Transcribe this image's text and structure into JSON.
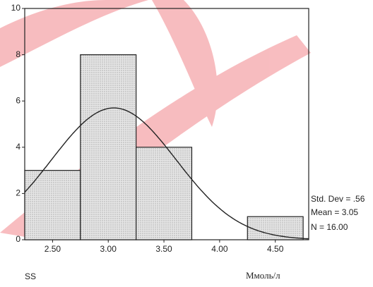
{
  "chart_data": {
    "type": "histogram",
    "bins": [
      2.25,
      2.75,
      3.25,
      3.75,
      4.25,
      4.75
    ],
    "values": [
      3,
      8,
      4,
      0,
      1
    ],
    "color": "#d4d4d4",
    "xlim": [
      2.25,
      4.8
    ],
    "ylim": [
      0,
      10
    ],
    "xticks": [
      {
        "value": 2.5,
        "label": "2.50"
      },
      {
        "value": 3,
        "label": "3.00"
      },
      {
        "value": 3.5,
        "label": "3.50"
      },
      {
        "value": 4,
        "label": "4.00"
      },
      {
        "value": 4.5,
        "label": "4.50"
      }
    ],
    "yticks": [
      0,
      2,
      4,
      6,
      8,
      10
    ],
    "stats": {
      "std_dev": {
        "value": 0.56,
        "label": "Std. Dev = .56"
      },
      "mean": {
        "value": 3.05,
        "label": "Mean = 3.05"
      },
      "n": {
        "value": 16,
        "label": "N = 16.00"
      }
    },
    "variable": "SS",
    "x_label": "Ммоль/л"
  }
}
